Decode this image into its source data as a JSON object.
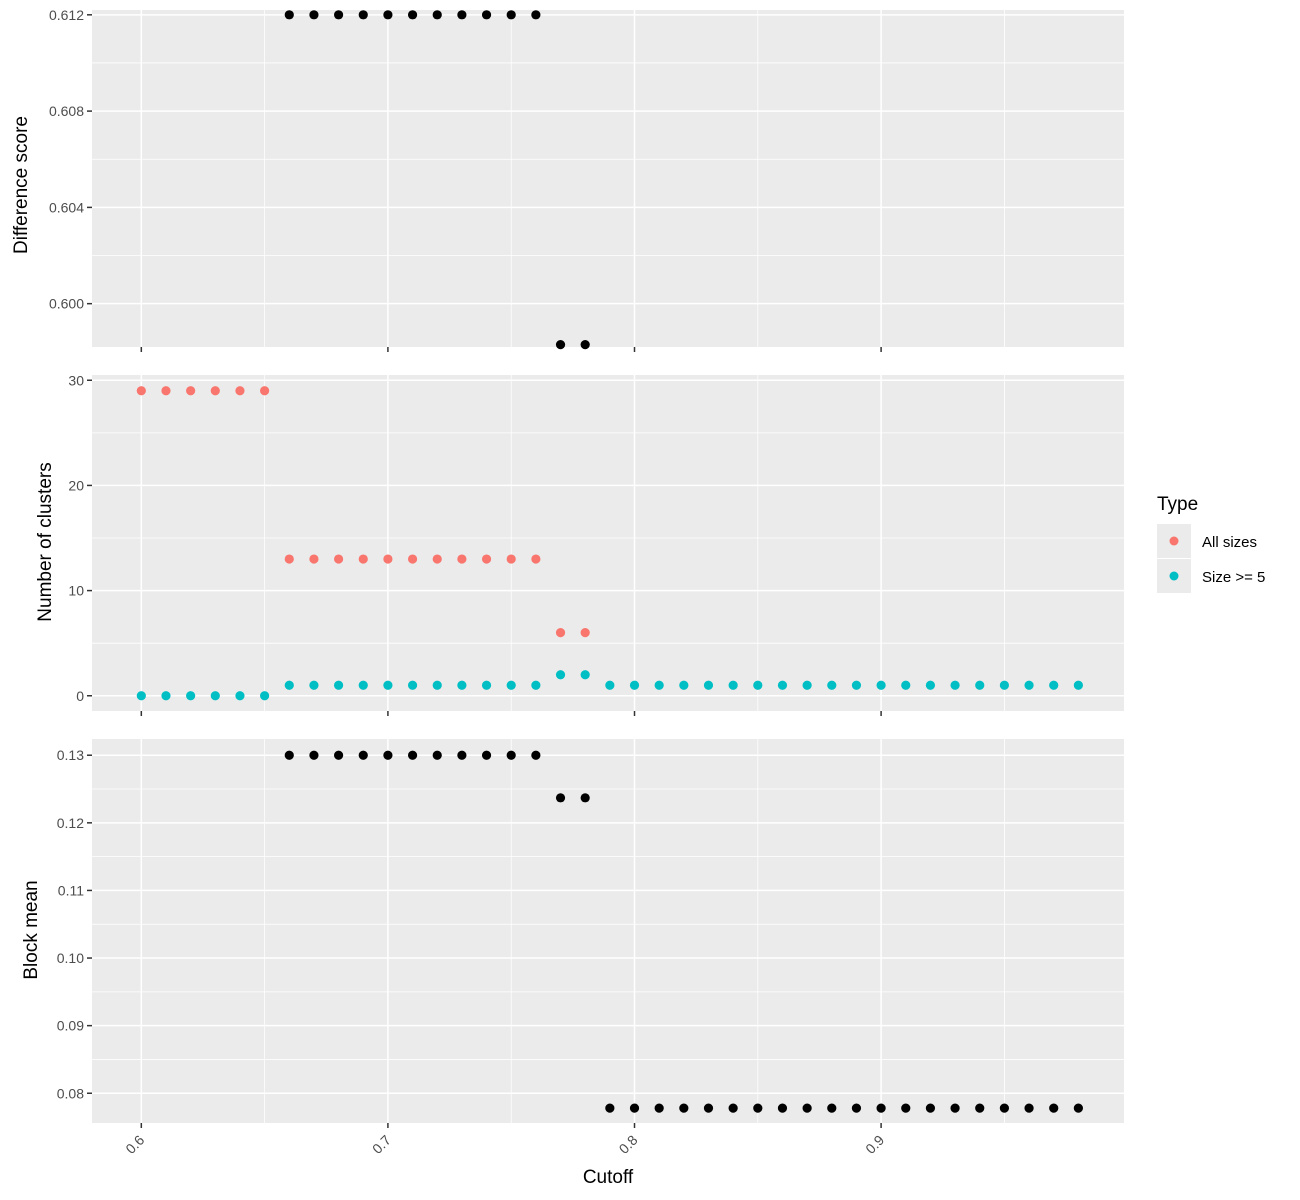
{
  "chart_data": [
    {
      "type": "scatter",
      "panel": "top",
      "ylabel": "Difference score",
      "xlim": [
        0.58,
        0.9985
      ],
      "ylim": [
        0.5982,
        0.6122
      ],
      "y_ticks": [
        "0.600",
        "0.604",
        "0.608",
        "0.612"
      ],
      "y_tick_values": [
        0.6,
        0.604,
        0.608,
        0.612
      ],
      "point_color": "#000000",
      "series": [
        {
          "x": [
            0.66,
            0.67,
            0.68,
            0.69,
            0.7,
            0.71,
            0.72,
            0.73,
            0.74,
            0.75,
            0.76,
            0.77,
            0.78
          ],
          "y": [
            0.612,
            0.612,
            0.612,
            0.612,
            0.612,
            0.612,
            0.612,
            0.612,
            0.612,
            0.612,
            0.612,
            0.5983,
            0.5983
          ]
        }
      ]
    },
    {
      "type": "scatter",
      "panel": "middle",
      "ylabel": "Number of clusters",
      "xlim": [
        0.58,
        0.9985
      ],
      "ylim": [
        -1.45,
        30.5
      ],
      "y_ticks": [
        "0",
        "10",
        "20",
        "30"
      ],
      "y_tick_values": [
        0,
        10,
        20,
        30
      ],
      "series": [
        {
          "name": "All sizes",
          "color": "#f8766d",
          "x": [
            0.6,
            0.61,
            0.62,
            0.63,
            0.64,
            0.65,
            0.66,
            0.67,
            0.68,
            0.69,
            0.7,
            0.71,
            0.72,
            0.73,
            0.74,
            0.75,
            0.76,
            0.77,
            0.78
          ],
          "y": [
            29,
            29,
            29,
            29,
            29,
            29,
            13,
            13,
            13,
            13,
            13,
            13,
            13,
            13,
            13,
            13,
            13,
            6,
            6
          ]
        },
        {
          "name": "Size >= 5",
          "color": "#00bfc4",
          "x": [
            0.6,
            0.61,
            0.62,
            0.63,
            0.64,
            0.65,
            0.66,
            0.67,
            0.68,
            0.69,
            0.7,
            0.71,
            0.72,
            0.73,
            0.74,
            0.75,
            0.76,
            0.77,
            0.78,
            0.79,
            0.8,
            0.81,
            0.82,
            0.83,
            0.84,
            0.85,
            0.86,
            0.87,
            0.88,
            0.89,
            0.9,
            0.91,
            0.92,
            0.93,
            0.94,
            0.95,
            0.96,
            0.97,
            0.98
          ],
          "y": [
            0,
            0,
            0,
            0,
            0,
            0,
            1,
            1,
            1,
            1,
            1,
            1,
            1,
            1,
            1,
            1,
            1,
            2,
            2,
            1,
            1,
            1,
            1,
            1,
            1,
            1,
            1,
            1,
            1,
            1,
            1,
            1,
            1,
            1,
            1,
            1,
            1,
            1,
            1
          ]
        }
      ]
    },
    {
      "type": "scatter",
      "panel": "bottom",
      "ylabel": "Block mean",
      "xlabel": "Cutoff",
      "xlim": [
        0.58,
        0.9985
      ],
      "ylim": [
        0.0756,
        0.1324
      ],
      "y_ticks": [
        "0.08",
        "0.09",
        "0.10",
        "0.11",
        "0.12",
        "0.13"
      ],
      "y_tick_values": [
        0.08,
        0.09,
        0.1,
        0.11,
        0.12,
        0.13
      ],
      "x_ticks": [
        "0.6",
        "0.7",
        "0.8",
        "0.9"
      ],
      "x_tick_values": [
        0.6,
        0.7,
        0.8,
        0.9
      ],
      "point_color": "#000000",
      "series": [
        {
          "x": [
            0.66,
            0.67,
            0.68,
            0.69,
            0.7,
            0.71,
            0.72,
            0.73,
            0.74,
            0.75,
            0.76,
            0.77,
            0.78,
            0.79,
            0.8,
            0.81,
            0.82,
            0.83,
            0.84,
            0.85,
            0.86,
            0.87,
            0.88,
            0.89,
            0.9,
            0.91,
            0.92,
            0.93,
            0.94,
            0.95,
            0.96,
            0.97,
            0.98
          ],
          "y": [
            0.13,
            0.13,
            0.13,
            0.13,
            0.13,
            0.13,
            0.13,
            0.13,
            0.13,
            0.13,
            0.13,
            0.1237,
            0.1237,
            0.0778,
            0.0778,
            0.0778,
            0.0778,
            0.0778,
            0.0778,
            0.0778,
            0.0778,
            0.0778,
            0.0778,
            0.0778,
            0.0778,
            0.0778,
            0.0778,
            0.0778,
            0.0778,
            0.0778,
            0.0778,
            0.0778,
            0.0778
          ]
        }
      ]
    }
  ],
  "legend": {
    "title": "Type",
    "items": [
      {
        "label": "All sizes",
        "color": "#f8766d"
      },
      {
        "label": "Size >= 5",
        "color": "#00bfc4"
      }
    ]
  }
}
